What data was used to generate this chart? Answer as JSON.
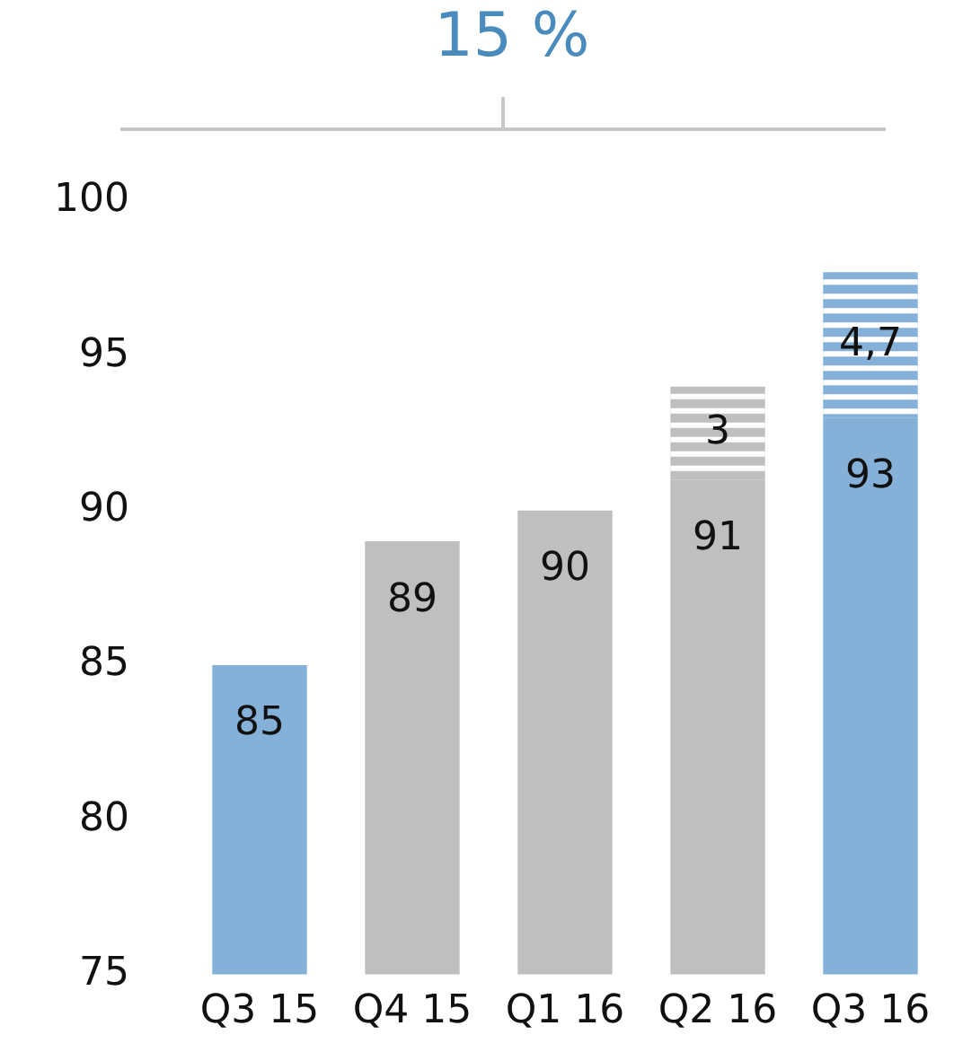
{
  "chart_data": {
    "type": "bar",
    "categories": [
      "Q3 15",
      "Q4 15",
      "Q1 16",
      "Q2 16",
      "Q3 16"
    ],
    "series": [
      {
        "colors": [
          "#85b1d8",
          "#bfbfbf",
          "#bfbfbf",
          "#bfbfbf",
          "#85b1d8"
        ],
        "values": [
          85,
          89,
          90,
          91,
          93
        ],
        "value_labels": [
          "85",
          "89",
          "90",
          "91",
          "93"
        ]
      },
      {
        "colors": [
          null,
          null,
          null,
          "#bfbfbf",
          "#85b1d8"
        ],
        "base": [
          null,
          null,
          null,
          91,
          93
        ],
        "values": [
          null,
          null,
          null,
          3,
          4.7
        ],
        "value_labels": [
          null,
          null,
          null,
          "3",
          "4,7"
        ]
      }
    ],
    "ylim": [
      75,
      100
    ],
    "yticks": [
      75,
      80,
      85,
      90,
      95,
      100
    ],
    "grid": false,
    "legend": false,
    "annotations": [
      "15 %"
    ]
  }
}
